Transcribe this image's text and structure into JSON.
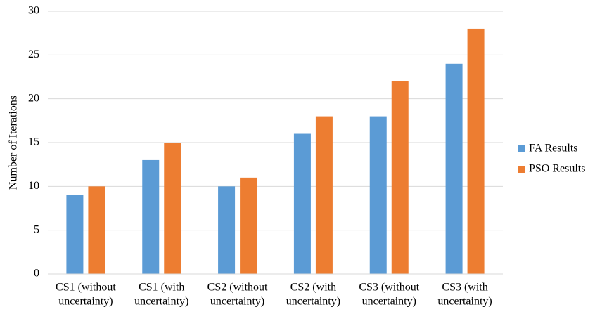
{
  "chart_data": {
    "type": "bar",
    "ylabel": "Number of Iterations",
    "categories": [
      [
        "CS1 (without",
        "uncertainty)"
      ],
      [
        "CS1 (with",
        "uncertainty)"
      ],
      [
        "CS2 (without",
        "uncertainty)"
      ],
      [
        "CS2 (with",
        "uncertainty)"
      ],
      [
        "CS3 (without",
        "uncertainty)"
      ],
      [
        "CS3 (with",
        "uncertainty)"
      ]
    ],
    "series": [
      {
        "name": "FA Results",
        "color": "#5b9bd5",
        "values": [
          9,
          13,
          10,
          16,
          18,
          24
        ]
      },
      {
        "name": "PSO Results",
        "color": "#ed7d31",
        "values": [
          10,
          15,
          11,
          18,
          22,
          28
        ]
      }
    ],
    "ylim": [
      0,
      30
    ],
    "yticks": [
      0,
      5,
      10,
      15,
      20,
      25,
      30
    ],
    "grid": true,
    "legend": "right"
  }
}
